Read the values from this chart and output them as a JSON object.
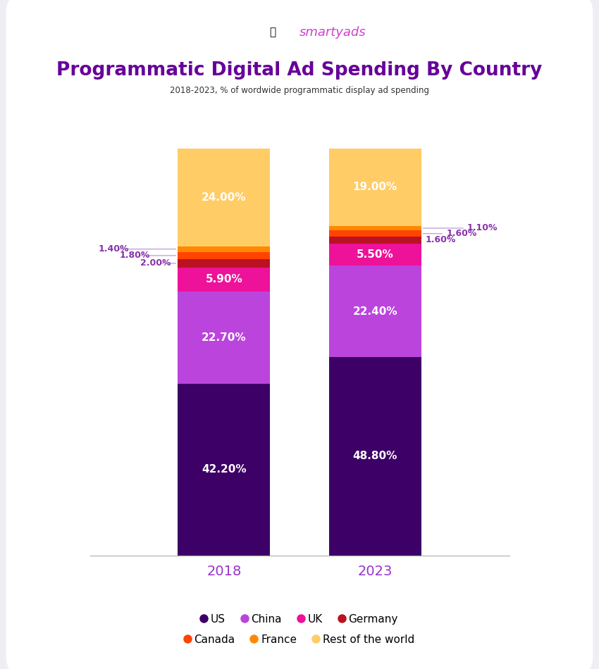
{
  "title": "Programmatic Digital Ad Spending By Country",
  "subtitle": "2018-2023, % of wordwide programmatic display ad spending",
  "logo_text": "smartyads",
  "years": [
    "2018",
    "2023"
  ],
  "categories": [
    "US",
    "China",
    "UK",
    "Germany",
    "Canada",
    "France",
    "Rest of the world"
  ],
  "colors": {
    "US": "#3D0066",
    "China": "#BB44DD",
    "UK": "#EE1199",
    "Germany": "#BB1122",
    "Canada": "#FF4400",
    "France": "#FF8800",
    "Rest of the world": "#FFCC66"
  },
  "data": {
    "2018": {
      "US": 42.2,
      "China": 22.7,
      "UK": 5.9,
      "Germany": 2.0,
      "Canada": 1.8,
      "France": 1.4,
      "Rest of the world": 24.0
    },
    "2023": {
      "US": 48.8,
      "China": 22.4,
      "UK": 5.5,
      "Germany": 1.6,
      "Canada": 1.6,
      "France": 1.1,
      "Rest of the world": 19.0
    }
  },
  "title_color": "#660099",
  "subtitle_border_color": "#9966CC",
  "axis_label_color": "#9933CC",
  "annotation_color": "#8833AA",
  "annotation_line_color": "#BB99DD",
  "bar_width": 0.22,
  "bar_positions": [
    0.32,
    0.68
  ],
  "ylim": [
    0,
    102
  ],
  "legend_items_row1": [
    "US",
    "China",
    "UK",
    "Germany"
  ],
  "legend_items_row2": [
    "Canada",
    "France",
    "Rest of the world"
  ]
}
